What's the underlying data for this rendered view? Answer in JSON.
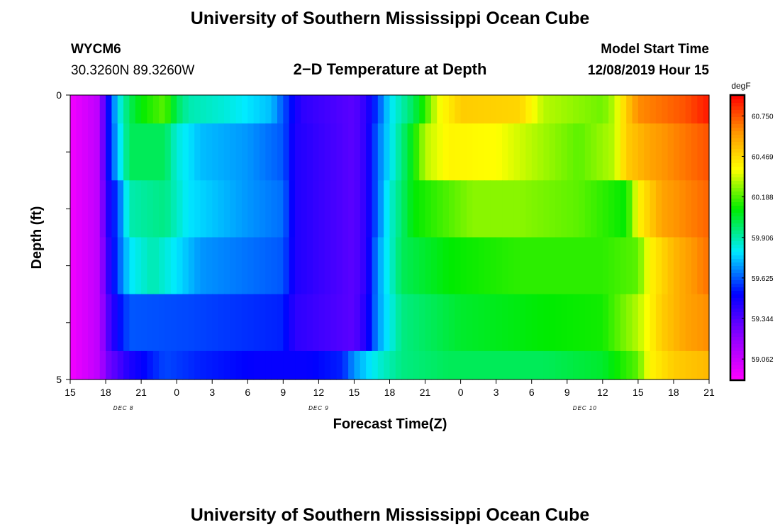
{
  "header": {
    "title": "University of Southern Mississippi Ocean Cube",
    "station_id": "WYCM6",
    "station_coords": "30.3260N 89.3260W",
    "plot_title": "2−D Temperature at Depth",
    "model_start_label": "Model Start Time",
    "model_start_value": "12/08/2019 Hour 15"
  },
  "footer": {
    "title": "University of Southern Mississippi Ocean Cube"
  },
  "chart_data": {
    "type": "heatmap",
    "xlabel": "Forecast Time(Z)",
    "ylabel": "Depth (ft)",
    "x_range_hours": [
      0,
      54
    ],
    "ylim": [
      0,
      5
    ],
    "x_tick_labels": [
      "15",
      "18",
      "21",
      "0",
      "3",
      "6",
      "9",
      "12",
      "15",
      "18",
      "21",
      "0",
      "3",
      "6",
      "9",
      "12",
      "15",
      "18",
      "21"
    ],
    "y_tick_labels": [
      "0",
      "5"
    ],
    "date_labels": [
      {
        "label": "DEC 8",
        "hour": 4.5
      },
      {
        "label": "DEC 9",
        "hour": 21
      },
      {
        "label": "DEC 10",
        "hour": 43.5
      }
    ],
    "colorbar": {
      "unit": "degF",
      "min": 58.92,
      "max": 60.89,
      "tick_labels": [
        "60.750",
        "60.469",
        "60.188",
        "59.906",
        "59.625",
        "59.344",
        "59.062"
      ],
      "tick_values": [
        60.75,
        60.469,
        60.188,
        59.906,
        59.625,
        59.344,
        59.062
      ]
    },
    "depth_layers": [
      0.25,
      1.25,
      2.25,
      3.25,
      4.25,
      4.75
    ],
    "rows": [
      {
        "depth": 0.25,
        "points": [
          [
            0,
            58.95
          ],
          [
            2.5,
            59.1
          ],
          [
            3,
            59.45
          ],
          [
            3.5,
            59.6
          ],
          [
            4,
            59.8
          ],
          [
            5,
            60.0
          ],
          [
            6,
            60.1
          ],
          [
            8,
            60.2
          ],
          [
            9,
            60.0
          ],
          [
            10,
            59.9
          ],
          [
            13,
            59.85
          ],
          [
            17,
            59.75
          ],
          [
            18.5,
            59.55
          ],
          [
            19.5,
            59.42
          ],
          [
            24,
            59.32
          ],
          [
            25,
            59.42
          ],
          [
            26,
            59.6
          ],
          [
            27,
            59.8
          ],
          [
            29,
            60.0
          ],
          [
            30,
            60.15
          ],
          [
            31,
            60.35
          ],
          [
            33,
            60.5
          ],
          [
            38,
            60.48
          ],
          [
            40,
            60.3
          ],
          [
            45,
            60.22
          ],
          [
            46,
            60.3
          ],
          [
            47,
            60.5
          ],
          [
            48,
            60.65
          ],
          [
            52,
            60.75
          ],
          [
            54,
            60.85
          ]
        ]
      },
      {
        "depth": 1.25,
        "points": [
          [
            0,
            58.95
          ],
          [
            2.5,
            59.1
          ],
          [
            3,
            59.45
          ],
          [
            3.5,
            59.6
          ],
          [
            4,
            59.75
          ],
          [
            5,
            60.0
          ],
          [
            8,
            60.0
          ],
          [
            9,
            59.85
          ],
          [
            11,
            59.75
          ],
          [
            15,
            59.7
          ],
          [
            18,
            59.62
          ],
          [
            19,
            59.45
          ],
          [
            24,
            59.32
          ],
          [
            25,
            59.42
          ],
          [
            26,
            59.65
          ],
          [
            27,
            59.8
          ],
          [
            29,
            60.1
          ],
          [
            30,
            60.3
          ],
          [
            32,
            60.4
          ],
          [
            36,
            60.38
          ],
          [
            39,
            60.3
          ],
          [
            43,
            60.2
          ],
          [
            46,
            60.3
          ],
          [
            47,
            60.5
          ],
          [
            49,
            60.6
          ],
          [
            54,
            60.75
          ]
        ]
      },
      {
        "depth": 2.25,
        "points": [
          [
            0,
            58.95
          ],
          [
            2.5,
            59.1
          ],
          [
            3,
            59.4
          ],
          [
            4,
            59.6
          ],
          [
            5,
            59.9
          ],
          [
            8,
            59.95
          ],
          [
            10,
            59.8
          ],
          [
            15,
            59.7
          ],
          [
            18,
            59.65
          ],
          [
            19,
            59.45
          ],
          [
            24,
            59.32
          ],
          [
            25,
            59.42
          ],
          [
            26,
            59.65
          ],
          [
            27,
            59.85
          ],
          [
            29,
            60.1
          ],
          [
            34,
            60.25
          ],
          [
            38,
            60.25
          ],
          [
            43,
            60.2
          ],
          [
            47,
            60.1
          ],
          [
            48,
            60.4
          ],
          [
            50,
            60.6
          ],
          [
            54,
            60.72
          ]
        ]
      },
      {
        "depth": 3.25,
        "points": [
          [
            0,
            58.95
          ],
          [
            2.5,
            59.1
          ],
          [
            3,
            59.35
          ],
          [
            4,
            59.6
          ],
          [
            5,
            59.8
          ],
          [
            7,
            59.9
          ],
          [
            9,
            59.8
          ],
          [
            11,
            59.7
          ],
          [
            18,
            59.62
          ],
          [
            19,
            59.45
          ],
          [
            24,
            59.32
          ],
          [
            25,
            59.42
          ],
          [
            26,
            59.7
          ],
          [
            28,
            60.0
          ],
          [
            32,
            60.1
          ],
          [
            38,
            60.15
          ],
          [
            45,
            60.15
          ],
          [
            48,
            60.2
          ],
          [
            49,
            60.4
          ],
          [
            51,
            60.55
          ],
          [
            54,
            60.7
          ]
        ]
      },
      {
        "depth": 4.25,
        "points": [
          [
            0,
            58.95
          ],
          [
            2.5,
            59.1
          ],
          [
            3,
            59.3
          ],
          [
            4,
            59.5
          ],
          [
            5,
            59.62
          ],
          [
            10,
            59.6
          ],
          [
            18,
            59.55
          ],
          [
            19,
            59.42
          ],
          [
            24,
            59.32
          ],
          [
            25,
            59.45
          ],
          [
            26,
            59.7
          ],
          [
            28,
            59.95
          ],
          [
            33,
            60.05
          ],
          [
            40,
            60.1
          ],
          [
            45,
            60.12
          ],
          [
            48,
            60.3
          ],
          [
            50,
            60.5
          ],
          [
            52,
            60.6
          ],
          [
            54,
            60.65
          ]
        ]
      },
      {
        "depth": 4.75,
        "points": [
          [
            0,
            58.95
          ],
          [
            2.5,
            59.1
          ],
          [
            3,
            59.25
          ],
          [
            5,
            59.45
          ],
          [
            8,
            59.6
          ],
          [
            11,
            59.55
          ],
          [
            16,
            59.5
          ],
          [
            20,
            59.5
          ],
          [
            23,
            59.55
          ],
          [
            24,
            59.7
          ],
          [
            26,
            59.85
          ],
          [
            28,
            59.95
          ],
          [
            32,
            60.0
          ],
          [
            40,
            60.0
          ],
          [
            45,
            60.05
          ],
          [
            48,
            60.2
          ],
          [
            49,
            60.4
          ],
          [
            51,
            60.5
          ],
          [
            54,
            60.55
          ]
        ]
      }
    ]
  }
}
